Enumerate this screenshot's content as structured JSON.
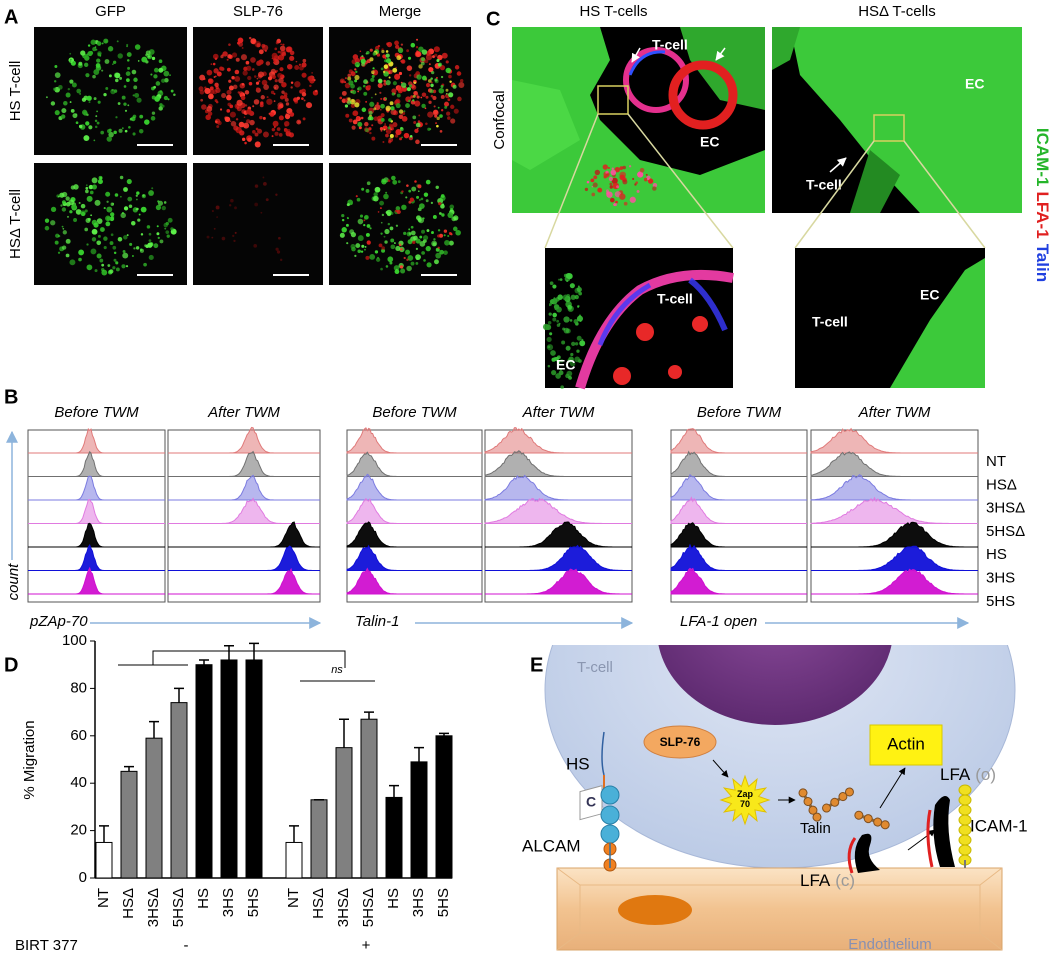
{
  "panel_labels": {
    "a": "A",
    "b": "B",
    "c": "C",
    "d": "D",
    "e": "E"
  },
  "panel_a": {
    "columns": [
      "GFP",
      "SLP-76",
      "Merge"
    ],
    "rows": [
      "HS T-cell",
      "HSΔ T-cell"
    ]
  },
  "panel_c": {
    "columns": [
      "HS T-cells",
      "HSΔ T-cells"
    ],
    "row_label": "Confocal",
    "annotations": {
      "hs_tcell": "T-cell",
      "hs_ec": "EC",
      "hsd_ec": "EC",
      "hsd_tcell": "T-cell",
      "inset1_tcell": "T-cell",
      "inset1_ec": "EC",
      "inset2_tcell": "T-cell",
      "inset2_ec": "EC"
    },
    "stain_legend": [
      "ICAM-1",
      "LFA-1",
      "Talin"
    ]
  },
  "panel_b": {
    "headers": [
      "Before TWM",
      "After TWM"
    ],
    "y_label": "count",
    "x_labels": [
      "pZAp-70",
      "Talin-1",
      "LFA-1 open"
    ],
    "legend": [
      "NT",
      "HSΔ",
      "3HSΔ",
      "5HSΔ",
      "HS",
      "3HS",
      "5HS"
    ]
  },
  "chart_data": {
    "type": "bar",
    "y_label": "% Migration",
    "categories": [
      "NT",
      "HSΔ",
      "3HSΔ",
      "5HSΔ",
      "HS",
      "3HS",
      "5HS",
      "NT",
      "HSΔ",
      "3HSΔ",
      "5HSΔ",
      "HS",
      "3HS",
      "5HS"
    ],
    "values": [
      15,
      45,
      59,
      74,
      90,
      92,
      92,
      15,
      33,
      55,
      67,
      34,
      49,
      60
    ],
    "errors": [
      7,
      2,
      7,
      6,
      2,
      6,
      7,
      7,
      0,
      12,
      3,
      5,
      6,
      1
    ],
    "colors": [
      "#ffffff",
      "#808080",
      "#808080",
      "#808080",
      "#000000",
      "#000000",
      "#000000",
      "#ffffff",
      "#808080",
      "#808080",
      "#808080",
      "#000000",
      "#000000",
      "#000000"
    ],
    "ylim": [
      0,
      100
    ],
    "yticks": [
      0,
      20,
      40,
      60,
      80,
      100
    ],
    "annotation": "ns",
    "group_label": "BIRT 377",
    "groups": [
      "-",
      "+"
    ]
  },
  "panel_e": {
    "cell": "T-cell",
    "slp76": "SLP-76",
    "zap": [
      "Zap",
      "70"
    ],
    "actin": "Actin",
    "hs": "HS",
    "c": "C",
    "alcam": "ALCAM",
    "talin": "Talin",
    "lfa_open": [
      "LFA",
      "(o)"
    ],
    "lfa_closed": [
      "LFA",
      "(c)"
    ],
    "icam": "ICAM-1",
    "endothelium": "Endothelium"
  }
}
